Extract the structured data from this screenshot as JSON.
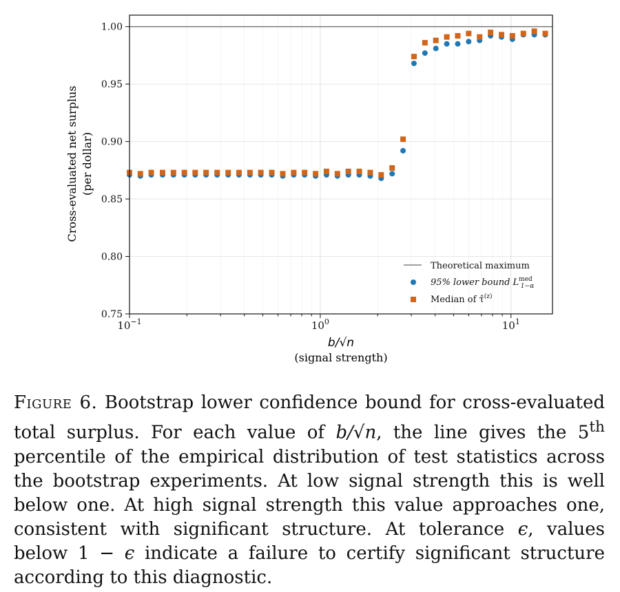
{
  "chart_data": {
    "type": "scatter",
    "x_scale": "log",
    "xlim": [
      0.1,
      16.5
    ],
    "ylim": [
      0.75,
      1.01
    ],
    "xlabel": "b/√n",
    "xlabel_sub": "(signal strength)",
    "ylabel": "Cross-evaluated net surplus",
    "ylabel_sub": "(per dollar)",
    "x_ticks": [
      {
        "value": 0.1,
        "base": "10",
        "exp": "−1"
      },
      {
        "value": 1,
        "base": "10",
        "exp": "0"
      },
      {
        "value": 10,
        "base": "10",
        "exp": "1"
      }
    ],
    "y_ticks": [
      0.75,
      0.8,
      0.85,
      0.9,
      0.95,
      1.0
    ],
    "y_tick_labels": [
      "0.75",
      "0.80",
      "0.85",
      "0.90",
      "0.95",
      "1.00"
    ],
    "grid": true,
    "legend_placement": "lower-right",
    "reference_line": {
      "name": "Theoretical maximum",
      "y": 1.0,
      "color": "#808080"
    },
    "x": [
      0.1,
      0.114,
      0.13,
      0.149,
      0.17,
      0.194,
      0.221,
      0.252,
      0.288,
      0.329,
      0.375,
      0.428,
      0.488,
      0.557,
      0.636,
      0.726,
      0.828,
      0.945,
      1.078,
      1.23,
      1.404,
      1.602,
      1.828,
      2.086,
      2.381,
      2.717,
      3.1,
      3.538,
      4.037,
      4.607,
      5.257,
      5.999,
      6.846,
      7.812,
      8.915,
      10.17,
      11.61,
      13.25,
      15.12,
      17.25
    ],
    "series": [
      {
        "name": "95% lower bound L",
        "name_sup": "med",
        "name_sub": "1−α",
        "marker": "circle",
        "color": "#1f77b4",
        "values": [
          0.871,
          0.87,
          0.871,
          0.871,
          0.871,
          0.871,
          0.871,
          0.871,
          0.871,
          0.871,
          0.871,
          0.871,
          0.871,
          0.871,
          0.87,
          0.871,
          0.871,
          0.87,
          0.871,
          0.87,
          0.871,
          0.871,
          0.87,
          0.868,
          0.872,
          0.892,
          0.968,
          0.977,
          0.981,
          0.985,
          0.985,
          0.987,
          0.988,
          0.992,
          0.991,
          0.989,
          0.993,
          0.993,
          0.993,
          0.993
        ]
      },
      {
        "name": "Median of τ̂",
        "name_sup": "(z)",
        "marker": "square",
        "color": "#d1651a",
        "values": [
          0.873,
          0.872,
          0.873,
          0.873,
          0.873,
          0.873,
          0.873,
          0.873,
          0.873,
          0.873,
          0.873,
          0.873,
          0.873,
          0.873,
          0.872,
          0.873,
          0.873,
          0.872,
          0.874,
          0.872,
          0.874,
          0.874,
          0.873,
          0.871,
          0.877,
          0.902,
          0.974,
          0.986,
          0.988,
          0.991,
          0.992,
          0.994,
          0.991,
          0.995,
          0.993,
          0.992,
          0.994,
          0.996,
          0.994,
          0.994
        ]
      }
    ]
  },
  "caption": {
    "label": "Figure 6.",
    "text_1": "Bootstrap lower confidence bound for cross-evaluated total surplus. For each value of ",
    "math_1": "b/√n",
    "text_2": ", the line gives the 5",
    "sup_1": "th",
    "text_3": " percentile of the empirical distribution of test statistics across the bootstrap experiments. At low signal strength this is well below one. At high signal strength this value approaches one, consistent with significant structure. At tolerance ",
    "math_2": "ϵ",
    "text_4": ", values below 1 − ",
    "math_3": "ϵ",
    "text_5": " indicate a failure to certify significant structure according to this diagnostic."
  }
}
